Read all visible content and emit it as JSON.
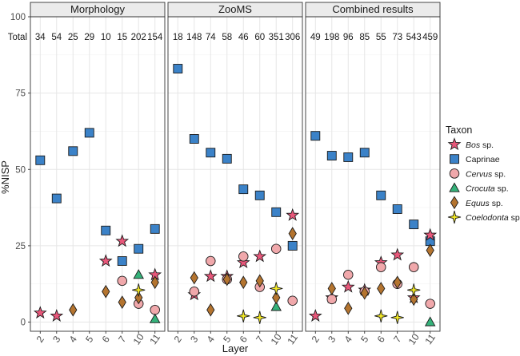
{
  "chart_data": {
    "type": "scatter",
    "xlabel": "Layer",
    "ylabel": "%NISP",
    "ylim": [
      -3,
      100
    ],
    "yticks": [
      0,
      25,
      50,
      75,
      100
    ],
    "categories": [
      "2",
      "3",
      "4",
      "5",
      "6",
      "7",
      "10",
      "11"
    ],
    "totals_label": "Total",
    "grid": true,
    "legend": {
      "title": "Taxon",
      "placement": "right",
      "entries": [
        {
          "key": "bos",
          "genus": "Bos",
          "suffix": " sp.",
          "italic": true,
          "shape": "star",
          "color": "#e8577a"
        },
        {
          "key": "caprinae",
          "genus": "Caprinae",
          "suffix": "",
          "italic": false,
          "shape": "square",
          "color": "#3b82c8"
        },
        {
          "key": "cervus",
          "genus": "Cervus",
          "suffix": " sp.",
          "italic": true,
          "shape": "circle",
          "color": "#f0a8ab"
        },
        {
          "key": "crocuta",
          "genus": "Crocuta",
          "suffix": " sp.",
          "italic": true,
          "shape": "triangle",
          "color": "#35b27a"
        },
        {
          "key": "equus",
          "genus": "Equus",
          "suffix": " sp.",
          "italic": true,
          "shape": "diamond",
          "color": "#b4742f"
        },
        {
          "key": "coelodonta",
          "genus": "Coelodonta",
          "suffix": " sp.",
          "italic": true,
          "shape": "star4",
          "color": "#f2e824"
        }
      ]
    },
    "panels": [
      {
        "title": "Morphology",
        "totals": [
          "34",
          "54",
          "25",
          "29",
          "10",
          "15",
          "202",
          "154"
        ],
        "series": [
          {
            "key": "caprinae",
            "points": [
              [
                "2",
                53
              ],
              [
                "3",
                40.5
              ],
              [
                "4",
                56
              ],
              [
                "5",
                62
              ],
              [
                "6",
                30
              ],
              [
                "7",
                20
              ],
              [
                "10",
                24
              ],
              [
                "11",
                30.5
              ]
            ]
          },
          {
            "key": "bos",
            "points": [
              [
                "2",
                3
              ],
              [
                "3",
                2
              ],
              [
                "6",
                20
              ],
              [
                "7",
                26.5
              ],
              [
                "11",
                15.5
              ]
            ]
          },
          {
            "key": "cervus",
            "points": [
              [
                "7",
                13.5
              ],
              [
                "10",
                6
              ],
              [
                "11",
                4
              ]
            ]
          },
          {
            "key": "crocuta",
            "points": [
              [
                "10",
                15.5
              ],
              [
                "11",
                1
              ]
            ]
          },
          {
            "key": "equus",
            "points": [
              [
                "4",
                4
              ],
              [
                "6",
                10
              ],
              [
                "7",
                6.5
              ],
              [
                "10",
                8
              ],
              [
                "11",
                13
              ]
            ]
          },
          {
            "key": "coelodonta",
            "points": [
              [
                "10",
                10.5
              ]
            ]
          }
        ]
      },
      {
        "title": "ZooMS",
        "totals": [
          "18",
          "148",
          "74",
          "58",
          "46",
          "60",
          "351",
          "306"
        ],
        "series": [
          {
            "key": "caprinae",
            "points": [
              [
                "2",
                83
              ],
              [
                "3",
                60
              ],
              [
                "4",
                55.5
              ],
              [
                "5",
                53.5
              ],
              [
                "6",
                43.5
              ],
              [
                "7",
                41.5
              ],
              [
                "10",
                36
              ],
              [
                "11",
                25
              ]
            ]
          },
          {
            "key": "bos",
            "points": [
              [
                "3",
                9
              ],
              [
                "4",
                15
              ],
              [
                "5",
                15
              ],
              [
                "6",
                19.5
              ],
              [
                "7",
                21.5
              ],
              [
                "11",
                35
              ]
            ]
          },
          {
            "key": "cervus",
            "points": [
              [
                "3",
                10
              ],
              [
                "4",
                20
              ],
              [
                "5",
                14
              ],
              [
                "6",
                21.5
              ],
              [
                "7",
                11.5
              ],
              [
                "10",
                24
              ],
              [
                "11",
                7
              ]
            ]
          },
          {
            "key": "crocuta",
            "points": [
              [
                "10",
                5
              ]
            ]
          },
          {
            "key": "equus",
            "points": [
              [
                "3",
                14.5
              ],
              [
                "4",
                4
              ],
              [
                "5",
                14
              ],
              [
                "6",
                13
              ],
              [
                "7",
                13.5
              ],
              [
                "10",
                8
              ],
              [
                "11",
                29
              ]
            ]
          },
          {
            "key": "coelodonta",
            "points": [
              [
                "6",
                2
              ],
              [
                "7",
                1.5
              ],
              [
                "10",
                11
              ]
            ]
          }
        ]
      },
      {
        "title": "Combined results",
        "totals": [
          "49",
          "198",
          "96",
          "85",
          "55",
          "73",
          "543",
          "459"
        ],
        "series": [
          {
            "key": "caprinae",
            "points": [
              [
                "2",
                61
              ],
              [
                "3",
                54.5
              ],
              [
                "4",
                54
              ],
              [
                "5",
                55.5
              ],
              [
                "6",
                41.5
              ],
              [
                "7",
                37
              ],
              [
                "10",
                32
              ],
              [
                "11",
                26.5
              ]
            ]
          },
          {
            "key": "bos",
            "points": [
              [
                "2",
                2
              ],
              [
                "3",
                8
              ],
              [
                "4",
                11.5
              ],
              [
                "5",
                10.5
              ],
              [
                "6",
                19.5
              ],
              [
                "7",
                22
              ],
              [
                "10",
                8
              ],
              [
                "11",
                28.5
              ]
            ]
          },
          {
            "key": "cervus",
            "points": [
              [
                "3",
                7.5
              ],
              [
                "4",
                15.5
              ],
              [
                "5",
                10
              ],
              [
                "6",
                18
              ],
              [
                "7",
                12.5
              ],
              [
                "10",
                18
              ],
              [
                "11",
                6
              ]
            ]
          },
          {
            "key": "crocuta",
            "points": [
              [
                "11",
                0
              ]
            ]
          },
          {
            "key": "equus",
            "points": [
              [
                "3",
                11
              ],
              [
                "4",
                4.5
              ],
              [
                "5",
                9.5
              ],
              [
                "6",
                11
              ],
              [
                "7",
                13
              ],
              [
                "10",
                7.5
              ],
              [
                "11",
                23.5
              ]
            ]
          },
          {
            "key": "coelodonta",
            "points": [
              [
                "6",
                2
              ],
              [
                "7",
                1.5
              ],
              [
                "10",
                10.5
              ]
            ]
          }
        ]
      }
    ]
  }
}
